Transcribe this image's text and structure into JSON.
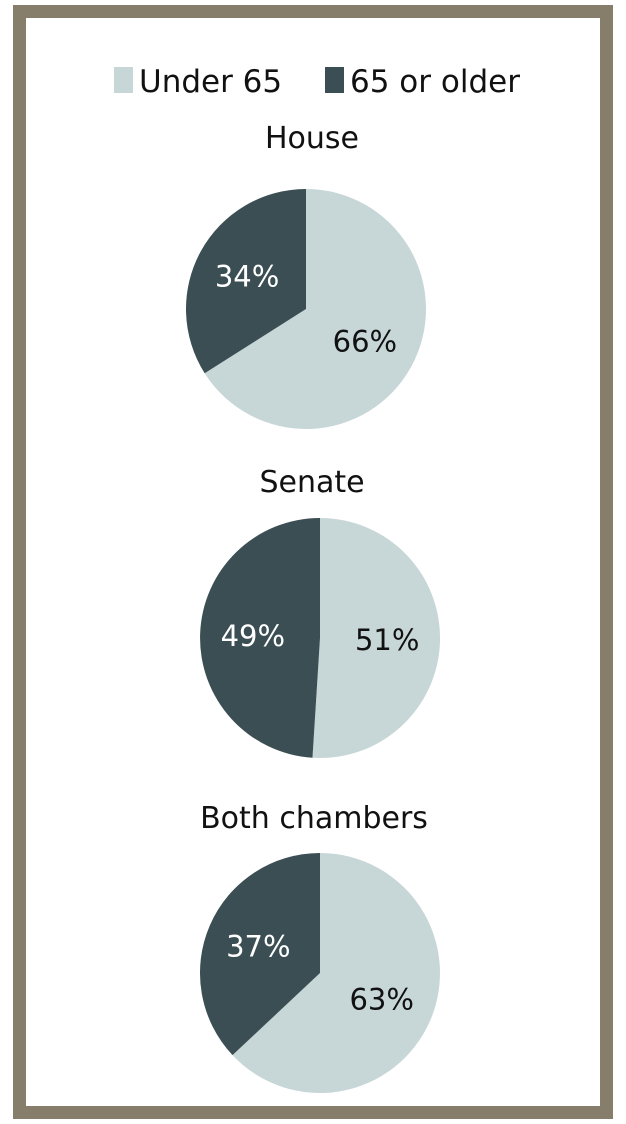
{
  "chart_data": {
    "type": "pie",
    "legend": {
      "placement": "top",
      "entries": [
        {
          "name": "Under 65",
          "color": "#c7d6d7"
        },
        {
          "name": "65 or older",
          "color": "#3b4e53"
        }
      ]
    },
    "pies": [
      {
        "title": "House",
        "slices": [
          {
            "name": "Under 65",
            "value": 66,
            "label": "66%"
          },
          {
            "name": "65 or older",
            "value": 34,
            "label": "34%"
          }
        ]
      },
      {
        "title": "Senate",
        "slices": [
          {
            "name": "Under 65",
            "value": 51,
            "label": "51%"
          },
          {
            "name": "65 or older",
            "value": 49,
            "label": "49%"
          }
        ]
      },
      {
        "title": "Both chambers",
        "slices": [
          {
            "name": "Under 65",
            "value": 63,
            "label": "63%"
          },
          {
            "name": "65 or older",
            "value": 37,
            "label": "37%"
          }
        ]
      }
    ],
    "colors": {
      "light": "#c7d6d7",
      "dark": "#3b4e53",
      "frame": "#877d6b",
      "label_on_light": "#111111",
      "label_on_dark": "#ffffff"
    }
  }
}
